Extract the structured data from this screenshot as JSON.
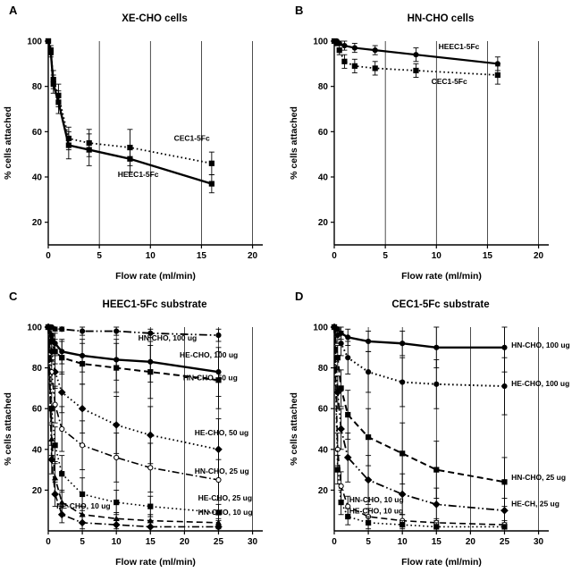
{
  "figure": {
    "ink_color": "#000000",
    "background": "#ffffff"
  },
  "chart_data": [
    {
      "panel": "A",
      "type": "line",
      "title": "XE-CHO cells",
      "xlabel": "Flow rate (ml/min)",
      "ylabel": "% cells attached",
      "xlim": [
        0,
        21
      ],
      "ylim": [
        10,
        100
      ],
      "xticks": [
        0,
        5,
        10,
        15,
        20
      ],
      "yticks": [
        20,
        40,
        60,
        80,
        100
      ],
      "grid": "vertical",
      "legend_position": "inline-annotations",
      "series": [
        {
          "name": "CEC1-5Fc",
          "style": "dotted",
          "width": 1.8,
          "marker": "square",
          "x": [
            0,
            0.25,
            0.5,
            1,
            2,
            4,
            8,
            16
          ],
          "y": [
            100,
            96,
            83,
            76,
            57,
            55,
            53,
            46
          ],
          "err": [
            0,
            2,
            4,
            5,
            5,
            6,
            8,
            5
          ],
          "label": {
            "text": "CEC1-5Fc",
            "x": 12.3,
            "y": 56,
            "anchor": "start"
          }
        },
        {
          "name": "HEEC1-5Fc",
          "style": "solid",
          "width": 2.4,
          "marker": "square",
          "x": [
            0,
            0.25,
            0.5,
            1,
            2,
            4,
            8,
            16
          ],
          "y": [
            100,
            95,
            81,
            73,
            54,
            52,
            48,
            37
          ],
          "err": [
            0,
            2,
            4,
            5,
            6,
            7,
            6,
            4
          ],
          "label": {
            "text": "HEEC1-5Fc",
            "x": 6.8,
            "y": 40,
            "anchor": "start"
          }
        }
      ]
    },
    {
      "panel": "B",
      "type": "line",
      "title": "HN-CHO cells",
      "xlabel": "Flow rate (ml/min)",
      "ylabel": "% cells attached",
      "xlim": [
        0,
        21
      ],
      "ylim": [
        10,
        100
      ],
      "xticks": [
        0,
        5,
        10,
        15,
        20
      ],
      "yticks": [
        20,
        40,
        60,
        80,
        100
      ],
      "grid": "vertical",
      "legend_position": "inline-annotations",
      "series": [
        {
          "name": "HEEC1-5Fc",
          "style": "solid",
          "width": 2.2,
          "marker": "circle",
          "x": [
            0,
            0.25,
            0.5,
            1,
            2,
            4,
            8,
            16
          ],
          "y": [
            100,
            100,
            99,
            98,
            97,
            96,
            94,
            90
          ],
          "err": [
            0,
            1,
            1,
            2,
            2,
            2,
            3,
            3
          ],
          "label": {
            "text": "HEEC1-5Fc",
            "x": 10.2,
            "y": 96.5,
            "anchor": "start"
          }
        },
        {
          "name": "CEC1-5Fc",
          "style": "dotted",
          "width": 1.8,
          "marker": "square",
          "x": [
            0,
            0.25,
            0.5,
            1,
            2,
            4,
            8,
            16
          ],
          "y": [
            100,
            99,
            96,
            91,
            89,
            88,
            87,
            85
          ],
          "err": [
            0,
            1,
            2,
            3,
            3,
            3,
            3,
            4
          ],
          "label": {
            "text": "CEC1-5Fc",
            "x": 9.5,
            "y": 81,
            "anchor": "start"
          }
        }
      ]
    },
    {
      "panel": "C",
      "type": "line",
      "title": "HEEC1-5Fc substrate",
      "xlabel": "Flow rate (ml/min)",
      "ylabel": "% cells attached",
      "xlim": [
        0,
        31.5
      ],
      "ylim": [
        0,
        100
      ],
      "xticks": [
        0,
        5,
        10,
        15,
        20,
        25,
        30
      ],
      "yticks": [
        20,
        40,
        60,
        80,
        100
      ],
      "grid": "vertical",
      "legend_position": "inline-annotations",
      "series": [
        {
          "name": "HN-CHO, 100 ug",
          "style": "dash-dot-dot",
          "width": 1.8,
          "marker": "circle",
          "x": [
            0,
            0.5,
            1,
            2,
            5,
            10,
            15,
            25
          ],
          "y": [
            100,
            100,
            99,
            99,
            98,
            98,
            97,
            96
          ],
          "err": [
            0,
            1,
            1,
            1,
            2,
            2,
            2,
            3
          ],
          "label": {
            "text": "HN-CHO, 100 ug",
            "x": 13.2,
            "y": 93.5,
            "anchor": "start"
          }
        },
        {
          "name": "HE-CHO, 100 ug",
          "style": "solid",
          "width": 2.4,
          "marker": "circle",
          "x": [
            0,
            0.5,
            1,
            2,
            5,
            10,
            15,
            25
          ],
          "y": [
            100,
            96,
            92,
            88,
            86,
            84,
            83,
            78
          ],
          "err": [
            0,
            3,
            5,
            6,
            8,
            10,
            10,
            12
          ],
          "label": {
            "text": "HE-CHO, 100 ug",
            "x": 19.3,
            "y": 85,
            "anchor": "start"
          }
        },
        {
          "name": "HN-CHO, 50 ug",
          "style": "dashed",
          "width": 2,
          "marker": "square",
          "x": [
            0,
            0.5,
            1,
            2,
            5,
            10,
            15,
            25
          ],
          "y": [
            100,
            93,
            88,
            85,
            82,
            80,
            78,
            74
          ],
          "err": [
            0,
            4,
            6,
            8,
            10,
            12,
            13,
            14
          ],
          "label": {
            "text": "HN-CHO, 50 ug",
            "x": 19.8,
            "y": 74,
            "anchor": "start"
          }
        },
        {
          "name": "HE-CHO, 50 ug",
          "style": "dotted",
          "width": 1.8,
          "marker": "diamond",
          "x": [
            0,
            0.5,
            1,
            2,
            5,
            10,
            15,
            25
          ],
          "y": [
            100,
            88,
            78,
            68,
            60,
            52,
            47,
            40
          ],
          "err": [
            0,
            5,
            8,
            10,
            12,
            14,
            14,
            15
          ],
          "label": {
            "text": "HE-CHO, 50 ug",
            "x": 21.5,
            "y": 47,
            "anchor": "start"
          }
        },
        {
          "name": "HN-CHO, 25 ug",
          "style": "dash-dot",
          "width": 1.6,
          "marker": "circle-open",
          "x": [
            0,
            0.5,
            1,
            2,
            5,
            10,
            15,
            25
          ],
          "y": [
            100,
            78,
            62,
            50,
            42,
            36,
            31,
            25
          ],
          "err": [
            0,
            6,
            9,
            11,
            12,
            12,
            12,
            10
          ],
          "label": {
            "text": "HN-CHO, 25 ug",
            "x": 21.5,
            "y": 28,
            "anchor": "start"
          }
        },
        {
          "name": "HE-CHO, 25 ug",
          "style": "dotted",
          "width": 1.6,
          "marker": "square",
          "x": [
            0,
            0.5,
            1,
            2,
            5,
            10,
            15,
            25
          ],
          "y": [
            100,
            60,
            42,
            28,
            18,
            14,
            12,
            9
          ],
          "err": [
            0,
            8,
            9,
            9,
            8,
            6,
            5,
            4
          ],
          "label": {
            "text": "HE-CHO, 25 ug",
            "x": 22,
            "y": 15,
            "anchor": "start"
          }
        },
        {
          "name": "HN-CHO, 10 ug",
          "style": "dashed",
          "width": 1.6,
          "marker": "triangle",
          "x": [
            0,
            0.5,
            1,
            2,
            5,
            10,
            15,
            25
          ],
          "y": [
            100,
            45,
            26,
            14,
            8,
            6,
            5,
            4
          ],
          "err": [
            0,
            8,
            8,
            6,
            4,
            3,
            3,
            2
          ],
          "label": {
            "text": "HN-CHO, 10 ug",
            "x": 22,
            "y": 8,
            "anchor": "start"
          }
        },
        {
          "name": "HE-CHO, 10 ug",
          "style": "dash-dot",
          "width": 1.6,
          "marker": "diamond",
          "x": [
            0,
            0.5,
            1,
            2,
            5,
            10,
            15,
            25
          ],
          "y": [
            100,
            35,
            18,
            8,
            4,
            3,
            2,
            2
          ],
          "err": [
            0,
            7,
            6,
            4,
            3,
            2,
            2,
            1
          ],
          "label": {
            "text": "HE-CHO, 10 ug",
            "x": 1.2,
            "y": 11,
            "anchor": "start"
          }
        }
      ]
    },
    {
      "panel": "D",
      "type": "line",
      "title": "CEC1-5Fc substrate",
      "xlabel": "Flow rate (ml/min)",
      "ylabel": "% cells attached",
      "xlim": [
        0,
        31.5
      ],
      "ylim": [
        0,
        100
      ],
      "xticks": [
        0,
        5,
        10,
        15,
        20,
        25,
        30
      ],
      "yticks": [
        20,
        40,
        60,
        80,
        100
      ],
      "grid": "vertical",
      "legend_position": "inline-annotations",
      "series": [
        {
          "name": "HN-CHO, 100 ug",
          "style": "solid",
          "width": 2.4,
          "marker": "circle",
          "x": [
            0,
            0.5,
            1,
            2,
            5,
            10,
            15,
            25
          ],
          "y": [
            100,
            99,
            97,
            95,
            93,
            92,
            90,
            90
          ],
          "err": [
            0,
            2,
            3,
            4,
            5,
            6,
            10,
            12
          ],
          "label": {
            "text": "HN-CHO, 100 ug",
            "x": 26,
            "y": 90,
            "anchor": "start"
          }
        },
        {
          "name": "HE-CHO, 100 ug",
          "style": "dotted",
          "width": 2,
          "marker": "circle",
          "x": [
            0,
            0.5,
            1,
            2,
            5,
            10,
            15,
            25
          ],
          "y": [
            100,
            96,
            92,
            85,
            78,
            73,
            72,
            71
          ],
          "err": [
            0,
            4,
            6,
            8,
            10,
            12,
            12,
            14
          ],
          "label": {
            "text": "HE-CHO, 100 ug",
            "x": 26,
            "y": 71,
            "anchor": "start"
          }
        },
        {
          "name": "HN-CHO, 25 ug",
          "style": "dashed",
          "width": 2,
          "marker": "square",
          "x": [
            0,
            0.5,
            1,
            2,
            5,
            10,
            15,
            25
          ],
          "y": [
            100,
            85,
            70,
            57,
            46,
            38,
            30,
            24
          ],
          "err": [
            0,
            6,
            9,
            12,
            14,
            15,
            14,
            12
          ],
          "label": {
            "text": "HN-CHO, 25 ug",
            "x": 26,
            "y": 25,
            "anchor": "start"
          }
        },
        {
          "name": "HE-CH, 25 ug",
          "style": "dash-dot-dot",
          "width": 1.8,
          "marker": "diamond",
          "x": [
            0,
            0.5,
            1,
            2,
            5,
            10,
            15,
            25
          ],
          "y": [
            100,
            68,
            50,
            36,
            25,
            18,
            13,
            10
          ],
          "err": [
            0,
            8,
            10,
            12,
            12,
            10,
            8,
            6
          ],
          "label": {
            "text": "HE-CH, 25 ug",
            "x": 26,
            "y": 12,
            "anchor": "start"
          }
        },
        {
          "name": "HN-CHO, 10 ug",
          "style": "dashed",
          "width": 1.6,
          "marker": "circle-open",
          "x": [
            0,
            0.5,
            1,
            2,
            5,
            10,
            15,
            25
          ],
          "y": [
            100,
            40,
            22,
            12,
            7,
            5,
            4,
            3
          ],
          "err": [
            0,
            8,
            7,
            5,
            4,
            3,
            2,
            2
          ],
          "label": {
            "text": "HN-CHO, 10 ug",
            "x": 2.2,
            "y": 14,
            "anchor": "start"
          }
        },
        {
          "name": "HE-CHO, 10 ug",
          "style": "dotted",
          "width": 1.6,
          "marker": "square",
          "x": [
            0,
            0.5,
            1,
            2,
            5,
            10,
            15,
            25
          ],
          "y": [
            100,
            30,
            14,
            7,
            4,
            3,
            2,
            2
          ],
          "err": [
            0,
            7,
            6,
            4,
            3,
            2,
            2,
            1
          ],
          "label": {
            "text": "HE-CHO, 10 ug",
            "x": 2.2,
            "y": 8.5,
            "anchor": "start"
          }
        }
      ]
    }
  ]
}
